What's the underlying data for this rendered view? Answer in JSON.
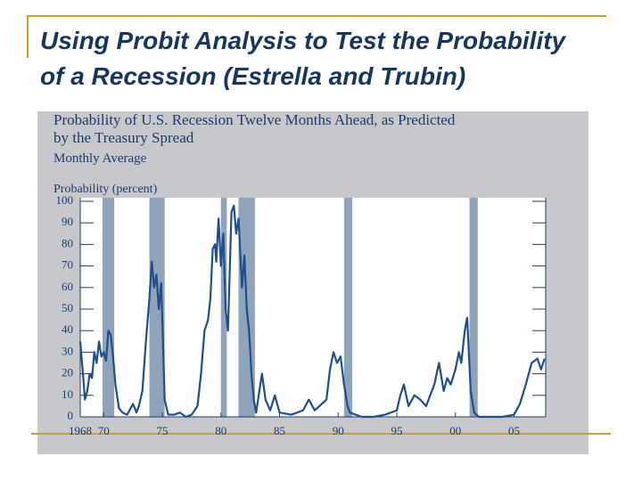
{
  "slide": {
    "title": "Using Probit Analysis to Test the Probability of a Recession (Estrella and Trubin)"
  },
  "chart_data": {
    "type": "line",
    "title": [
      "Probability of U.S. Recession Twelve Months Ahead, as Predicted",
      "by the Treasury Spread"
    ],
    "subtitle": "Monthly Average",
    "y_label": "Probability (percent)",
    "x": [
      1968.0,
      1968.2,
      1968.4,
      1968.6,
      1968.8,
      1969.0,
      1969.2,
      1969.4,
      1969.6,
      1969.8,
      1970.0,
      1970.2,
      1970.4,
      1970.6,
      1970.8,
      1971.0,
      1971.3,
      1971.6,
      1972.0,
      1972.5,
      1972.8,
      1973.0,
      1973.3,
      1973.6,
      1973.9,
      1974.1,
      1974.3,
      1974.5,
      1974.7,
      1974.9,
      1975.0,
      1975.2,
      1975.5,
      1976.0,
      1976.5,
      1977.0,
      1977.5,
      1978.0,
      1978.3,
      1978.6,
      1978.9,
      1979.1,
      1979.3,
      1979.5,
      1979.6,
      1979.8,
      1980.0,
      1980.2,
      1980.4,
      1980.6,
      1980.9,
      1981.1,
      1981.3,
      1981.5,
      1981.8,
      1982.0,
      1982.2,
      1982.4,
      1982.6,
      1982.8,
      1983.0,
      1983.5,
      1983.8,
      1984.2,
      1984.6,
      1985.0,
      1986.0,
      1987.0,
      1987.5,
      1988.0,
      1989.0,
      1989.3,
      1989.6,
      1989.9,
      1990.2,
      1990.5,
      1990.8,
      1991.0,
      1992.0,
      1993.0,
      1994.0,
      1995.0,
      1995.3,
      1995.6,
      1996.0,
      1996.5,
      1997.0,
      1997.5,
      1998.2,
      1998.6,
      1999.0,
      1999.3,
      1999.6,
      2000.0,
      2000.3,
      2000.5,
      2000.8,
      2001.0,
      2001.1,
      2001.3,
      2001.6,
      2002.0,
      2003.0,
      2004.0,
      2005.0,
      2005.5,
      2006.0,
      2006.5,
      2007.0,
      2007.3,
      2007.6
    ],
    "series": [
      {
        "color": "#1f4e8c",
        "values": [
          35,
          22,
          8,
          12,
          20,
          18,
          30,
          25,
          35,
          28,
          30,
          26,
          40,
          38,
          28,
          15,
          4,
          2,
          1,
          6,
          2,
          5,
          12,
          35,
          55,
          72,
          60,
          66,
          50,
          62,
          45,
          8,
          1,
          1,
          2,
          0,
          1,
          5,
          20,
          40,
          45,
          55,
          78,
          80,
          72,
          92,
          70,
          85,
          50,
          40,
          95,
          98,
          85,
          92,
          60,
          75,
          50,
          40,
          20,
          8,
          2,
          20,
          8,
          3,
          10,
          2,
          1,
          3,
          8,
          3,
          8,
          22,
          30,
          25,
          28,
          15,
          5,
          2,
          0,
          0,
          1,
          3,
          10,
          15,
          5,
          10,
          8,
          5,
          15,
          25,
          12,
          18,
          15,
          22,
          30,
          25,
          40,
          46,
          35,
          12,
          2,
          0,
          0,
          0,
          1,
          6,
          15,
          25,
          27,
          22,
          27
        ]
      }
    ],
    "recessions": [
      [
        1969.9,
        1970.9
      ],
      [
        1973.9,
        1975.2
      ],
      [
        1980.0,
        1980.5
      ],
      [
        1981.5,
        1982.9
      ],
      [
        1990.5,
        1991.2
      ],
      [
        2001.2,
        2001.9
      ]
    ],
    "recession_color": "#8fa3bb",
    "xlim": [
      1968,
      2007.7
    ],
    "xticks": [
      {
        "value": 1968,
        "label": "1968"
      },
      {
        "value": 1970,
        "label": "70"
      },
      {
        "value": 1975,
        "label": "75"
      },
      {
        "value": 1980,
        "label": "80"
      },
      {
        "value": 1985,
        "label": "85"
      },
      {
        "value": 1990,
        "label": "90"
      },
      {
        "value": 1995,
        "label": "95"
      },
      {
        "value": 2000,
        "label": "00"
      },
      {
        "value": 2005,
        "label": "05"
      }
    ],
    "ylim": [
      0,
      100
    ],
    "yticks": [
      0,
      10,
      20,
      30,
      40,
      50,
      60,
      70,
      80,
      90,
      100
    ],
    "grid": false
  }
}
